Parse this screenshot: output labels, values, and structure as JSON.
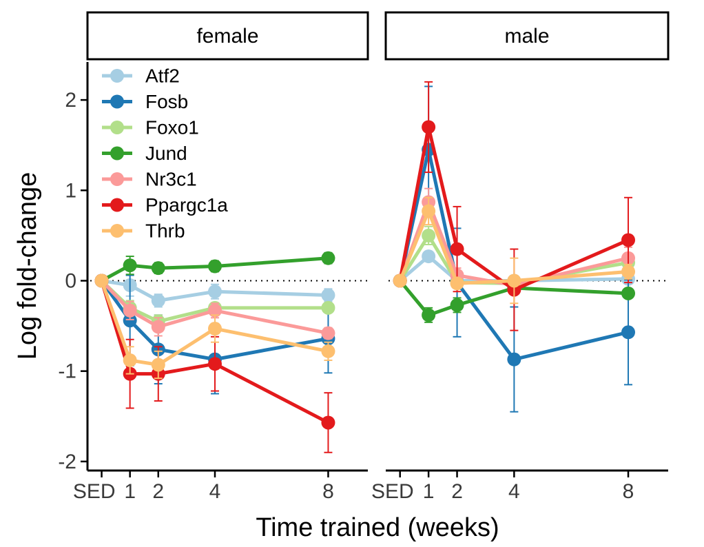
{
  "chart_data": {
    "type": "line",
    "ylabel": "Log fold-change",
    "xlabel": "Time trained (weeks)",
    "x_positions": [
      0,
      1,
      2,
      4,
      8
    ],
    "x_tick_labels": [
      "SED",
      "1",
      "2",
      "4",
      "8"
    ],
    "x_range": [
      -0.5,
      9.4
    ],
    "ylim": [
      -2.1,
      2.42
    ],
    "y_ticks": [
      -2,
      -1,
      0,
      1,
      2
    ],
    "y_tick_labels": [
      "-2",
      "-1",
      "0",
      "1",
      "2"
    ],
    "reference_line": 0,
    "legend_position": "top-left",
    "panels": [
      {
        "title": "female",
        "series": [
          {
            "name": "Atf2",
            "color": "#a6cee3",
            "values": [
              0,
              -0.05,
              -0.22,
              -0.12,
              -0.16
            ],
            "errors": [
              0,
              0.12,
              0.07,
              0.08,
              0.07
            ]
          },
          {
            "name": "Fosb",
            "color": "#1f78b4",
            "values": [
              0,
              -0.44,
              -0.76,
              -0.87,
              -0.64
            ],
            "errors": [
              0,
              0.5,
              0.38,
              0.38,
              0.38
            ]
          },
          {
            "name": "Foxo1",
            "color": "#b2df8a",
            "values": [
              0,
              -0.3,
              -0.45,
              -0.3,
              -0.3
            ],
            "errors": [
              0,
              0.08,
              0.07,
              0.05,
              0.05
            ]
          },
          {
            "name": "Jund",
            "color": "#33a02c",
            "values": [
              0,
              0.17,
              0.14,
              0.16,
              0.25
            ],
            "errors": [
              0,
              0.1,
              0.06,
              0.06,
              0.06
            ]
          },
          {
            "name": "Nr3c1",
            "color": "#fb9a99",
            "values": [
              0,
              -0.33,
              -0.51,
              -0.33,
              -0.58
            ],
            "errors": [
              0,
              0.1,
              0.1,
              0.08,
              0.06
            ]
          },
          {
            "name": "Ppargc1a",
            "color": "#e31a1c",
            "values": [
              0,
              -1.03,
              -1.03,
              -0.92,
              -1.57
            ],
            "errors": [
              0,
              0.38,
              0.3,
              0.3,
              0.33
            ]
          },
          {
            "name": "Thrb",
            "color": "#fdbf6f",
            "values": [
              0,
              -0.88,
              -0.93,
              -0.53,
              -0.78
            ],
            "errors": [
              0,
              0.15,
              0.15,
              0.15,
              0.1
            ]
          }
        ]
      },
      {
        "title": "male",
        "series": [
          {
            "name": "Atf2",
            "color": "#a6cee3",
            "values": [
              0,
              0.27,
              0.0,
              0.0,
              0.02
            ],
            "errors": [
              0,
              0.05,
              0.03,
              0.05,
              0.05
            ]
          },
          {
            "name": "Fosb",
            "color": "#1f78b4",
            "values": [
              0,
              1.45,
              -0.02,
              -0.87,
              -0.57
            ],
            "errors": [
              0,
              0.7,
              0.6,
              0.58,
              0.58
            ]
          },
          {
            "name": "Foxo1",
            "color": "#b2df8a",
            "values": [
              0,
              0.5,
              -0.02,
              -0.03,
              0.2
            ],
            "errors": [
              0,
              0.1,
              0.05,
              0.05,
              0.08
            ]
          },
          {
            "name": "Jund",
            "color": "#33a02c",
            "values": [
              0,
              -0.38,
              -0.27,
              -0.08,
              -0.14
            ],
            "errors": [
              0,
              0.08,
              0.08,
              0.05,
              0.05
            ]
          },
          {
            "name": "Nr3c1",
            "color": "#fb9a99",
            "values": [
              0,
              0.87,
              0.06,
              -0.05,
              0.25
            ],
            "errors": [
              0,
              0.15,
              0.08,
              0.08,
              0.12
            ]
          },
          {
            "name": "Ppargc1a",
            "color": "#e31a1c",
            "values": [
              0,
              1.7,
              0.35,
              -0.1,
              0.45
            ],
            "errors": [
              0,
              0.5,
              0.47,
              0.45,
              0.47
            ]
          },
          {
            "name": "Thrb",
            "color": "#fdbf6f",
            "values": [
              0,
              0.77,
              -0.03,
              0.0,
              0.1
            ],
            "errors": [
              0,
              0.15,
              0.05,
              0.25,
              0.08
            ]
          }
        ]
      }
    ]
  }
}
